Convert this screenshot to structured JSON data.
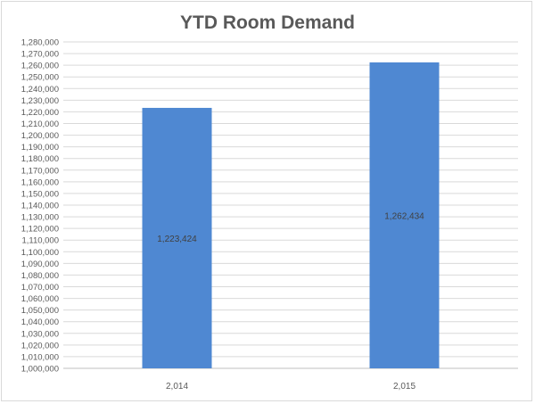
{
  "chart_data": {
    "type": "bar",
    "title": "YTD Room Demand",
    "xlabel": "",
    "ylabel": "",
    "categories": [
      "2,014",
      "2,015"
    ],
    "values": [
      1223424,
      1262434
    ],
    "data_labels": [
      "1,223,424",
      "1,262,434"
    ],
    "ylim": [
      1000000,
      1280000
    ],
    "ytick_step": 10000,
    "grid": true,
    "legend": "none",
    "bar_color": "#4f88d2"
  }
}
